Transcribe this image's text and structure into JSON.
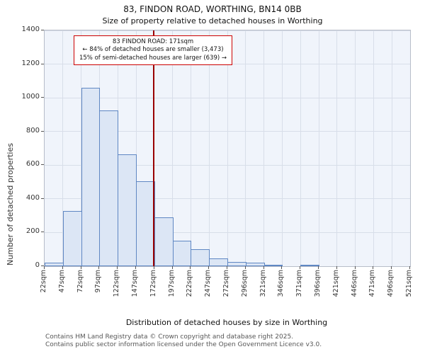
{
  "header": {
    "title": "83, FINDON ROAD, WORTHING, BN14 0BB",
    "subtitle": "Size of property relative to detached houses in Worthing"
  },
  "chart_data": {
    "type": "bar",
    "title": "83, FINDON ROAD, WORTHING, BN14 0BB",
    "subtitle": "Size of property relative to detached houses in Worthing",
    "xlabel": "Distribution of detached houses by size in Worthing",
    "ylabel": "Number of detached properties",
    "xlim": [
      22,
      521
    ],
    "ylim": [
      0,
      1400
    ],
    "yticks": [
      0,
      200,
      400,
      600,
      800,
      1000,
      1200,
      1400
    ],
    "bin_edge_labels": [
      "22sqm",
      "47sqm",
      "72sqm",
      "97sqm",
      "122sqm",
      "147sqm",
      "172sqm",
      "197sqm",
      "222sqm",
      "247sqm",
      "272sqm",
      "296sqm",
      "321sqm",
      "346sqm",
      "371sqm",
      "396sqm",
      "421sqm",
      "446sqm",
      "471sqm",
      "496sqm",
      "521sqm"
    ],
    "values": [
      20,
      330,
      1060,
      925,
      665,
      505,
      290,
      150,
      100,
      45,
      25,
      20,
      10,
      0,
      7,
      0,
      0,
      0,
      0,
      0
    ],
    "grid": true,
    "legend": "none",
    "marker": {
      "label": "83 FINDON ROAD: 171sqm",
      "value_sqm": 171
    },
    "annotation": {
      "lines": [
        "83 FINDON ROAD: 171sqm",
        "← 84% of detached houses are smaller (3,473)",
        "15% of semi-detached houses are larger (639) →"
      ]
    },
    "colors": {
      "bar_fill": "#dce6f5",
      "bar_edge": "#5f87c3",
      "marker_line": "#990000",
      "annotation_border": "#cc0000",
      "grid": "#d8dee9",
      "plot_background": "#f0f4fb"
    }
  },
  "footer": {
    "line1": "Contains HM Land Registry data © Crown copyright and database right 2025.",
    "line2": "Contains public sector information licensed under the Open Government Licence v3.0."
  }
}
